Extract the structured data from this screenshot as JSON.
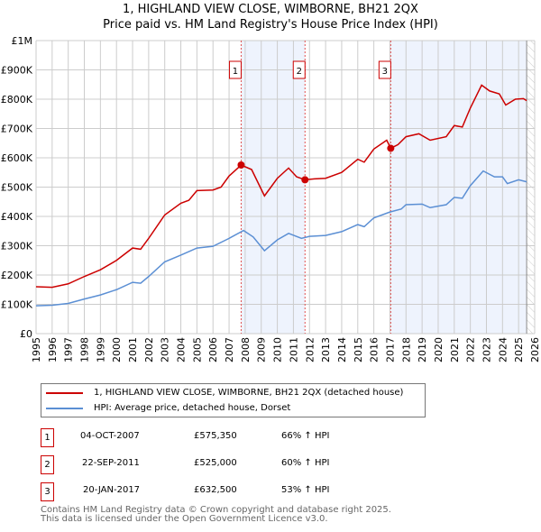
{
  "chart_data": {
    "type": "line",
    "title": "1, HIGHLAND VIEW CLOSE, WIMBORNE, BH21 2QX",
    "subtitle": "Price paid vs. HM Land Registry's House Price Index (HPI)",
    "xlim": [
      1995,
      2026
    ],
    "ylim": [
      0,
      1000000
    ],
    "x_ticks": [
      "1995",
      "1996",
      "1997",
      "1998",
      "1999",
      "2000",
      "2001",
      "2002",
      "2003",
      "2004",
      "2005",
      "2006",
      "2007",
      "2008",
      "2009",
      "2010",
      "2011",
      "2012",
      "2013",
      "2014",
      "2015",
      "2016",
      "2017",
      "2018",
      "2019",
      "2020",
      "2021",
      "2022",
      "2023",
      "2024",
      "2025",
      "2026"
    ],
    "y_ticks": [
      {
        "v": 0,
        "label": "£0"
      },
      {
        "v": 100000,
        "label": "£100K"
      },
      {
        "v": 200000,
        "label": "£200K"
      },
      {
        "v": 300000,
        "label": "£300K"
      },
      {
        "v": 400000,
        "label": "£400K"
      },
      {
        "v": 500000,
        "label": "£500K"
      },
      {
        "v": 600000,
        "label": "£600K"
      },
      {
        "v": 700000,
        "label": "£700K"
      },
      {
        "v": 800000,
        "label": "£800K"
      },
      {
        "v": 900000,
        "label": "£900K"
      },
      {
        "v": 1000000,
        "label": "£1M"
      }
    ],
    "grid": true,
    "series": [
      {
        "name": "1, HIGHLAND VIEW CLOSE, WIMBORNE, BH21 2QX (detached house)",
        "color": "#cc0000",
        "x": [
          1995,
          1996,
          1997,
          1998,
          1999,
          2000,
          2001,
          2001.5,
          2002,
          2003,
          2004,
          2004.5,
          2005,
          2006,
          2006.5,
          2007,
          2007.75,
          2008.4,
          2009.2,
          2010,
          2010.7,
          2011.2,
          2011.72,
          2012.3,
          2013,
          2014,
          2015,
          2015.4,
          2016,
          2016.8,
          2017.05,
          2017.5,
          2018,
          2018.8,
          2019.5,
          2020.5,
          2021,
          2021.5,
          2022,
          2022.7,
          2023.2,
          2023.8,
          2024.2,
          2024.8,
          2025.3,
          2025.5
        ],
        "y": [
          160000,
          158000,
          170000,
          195000,
          218000,
          250000,
          292000,
          288000,
          325000,
          405000,
          445000,
          455000,
          488000,
          490000,
          500000,
          538000,
          575350,
          560000,
          470000,
          530000,
          565000,
          535000,
          525000,
          528000,
          530000,
          550000,
          595000,
          585000,
          630000,
          660000,
          632500,
          645000,
          672000,
          682000,
          660000,
          672000,
          710000,
          705000,
          770000,
          848000,
          828000,
          818000,
          780000,
          800000,
          802000,
          795000
        ]
      },
      {
        "name": "HPI: Average price, detached house, Dorset",
        "color": "#5b8fd4",
        "x": [
          1995,
          1996,
          1997,
          1998,
          1999,
          2000,
          2001,
          2001.5,
          2002,
          2003,
          2004,
          2005,
          2006,
          2007,
          2007.9,
          2008.5,
          2009.2,
          2010,
          2010.7,
          2011.5,
          2012,
          2013,
          2014,
          2015,
          2015.4,
          2016,
          2017,
          2017.7,
          2018,
          2019,
          2019.5,
          2020.5,
          2021,
          2021.5,
          2022,
          2022.8,
          2023.5,
          2024,
          2024.3,
          2025,
          2025.5
        ],
        "y": [
          95000,
          97000,
          103000,
          118000,
          132000,
          150000,
          175000,
          172000,
          195000,
          245000,
          268000,
          292000,
          298000,
          325000,
          352000,
          330000,
          283000,
          320000,
          342000,
          325000,
          332000,
          335000,
          348000,
          372000,
          365000,
          395000,
          415000,
          425000,
          440000,
          442000,
          430000,
          440000,
          465000,
          462000,
          505000,
          555000,
          535000,
          535000,
          512000,
          525000,
          518000
        ]
      }
    ],
    "sales": [
      {
        "n": "1",
        "x": 2007.75,
        "date": "04-OCT-2007",
        "price": "£575,350",
        "value": 575350,
        "hpi": "66% ↑ HPI"
      },
      {
        "n": "2",
        "x": 2011.72,
        "date": "22-SEP-2011",
        "price": "£525,000",
        "value": 525000,
        "hpi": "60% ↑ HPI"
      },
      {
        "n": "3",
        "x": 2017.05,
        "date": "20-JAN-2017",
        "price": "£632,500",
        "value": 632500,
        "hpi": "53% ↑ HPI"
      }
    ],
    "shaded": [
      [
        2007.75,
        2011.72
      ],
      [
        2017.05,
        2025.5
      ]
    ],
    "forecast_from": 2025.5,
    "legend_position": "bottom"
  },
  "footer": [
    "Contains HM Land Registry data © Crown copyright and database right 2025.",
    "This data is licensed under the Open Government Licence v3.0."
  ]
}
